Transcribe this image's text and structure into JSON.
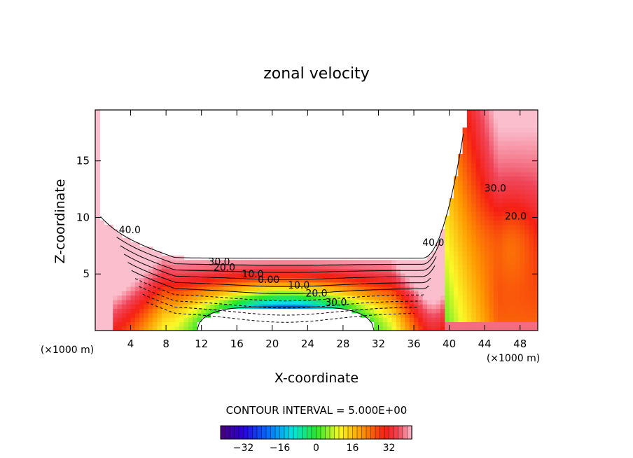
{
  "chart_data": {
    "type": "contour",
    "title": "zonal velocity",
    "xlabel": "X-coordinate",
    "ylabel": "Z-coordinate",
    "x_unit": "(×1000 m)",
    "y_unit": "(×1000 m)",
    "xlim": [
      0,
      50
    ],
    "ylim": [
      0,
      19.5
    ],
    "xticks": [
      4,
      8,
      12,
      16,
      20,
      24,
      28,
      32,
      36,
      40,
      44,
      48
    ],
    "yticks": [
      5,
      10,
      15
    ],
    "contour_interval_label": "CONTOUR INTERVAL = 5.000E+00",
    "contour_labels": [
      {
        "text": "40.0",
        "x": 3.9,
        "y": 8.6
      },
      {
        "text": "30.0",
        "x": 14.0,
        "y": 5.8
      },
      {
        "text": "20.0",
        "x": 14.6,
        "y": 5.3
      },
      {
        "text": "10.0",
        "x": 17.8,
        "y": 4.7
      },
      {
        "text": "0.00",
        "x": 19.6,
        "y": 4.2
      },
      {
        "text": "10.0",
        "x": 23.0,
        "y": 3.7
      },
      {
        "text": "20.0",
        "x": 25.0,
        "y": 3.0
      },
      {
        "text": "30.0",
        "x": 27.2,
        "y": 2.2
      },
      {
        "text": "40.0",
        "x": 38.2,
        "y": 7.5
      },
      {
        "text": "30.0",
        "x": 45.2,
        "y": 12.3
      },
      {
        "text": "20.0",
        "x": 47.5,
        "y": 9.8
      }
    ],
    "colorbar": {
      "range": [
        -42,
        42
      ],
      "ticks": [
        -32,
        -16,
        0,
        16,
        32
      ],
      "tick_labels": [
        "−32",
        "−16",
        "0",
        "16",
        "32"
      ]
    }
  }
}
